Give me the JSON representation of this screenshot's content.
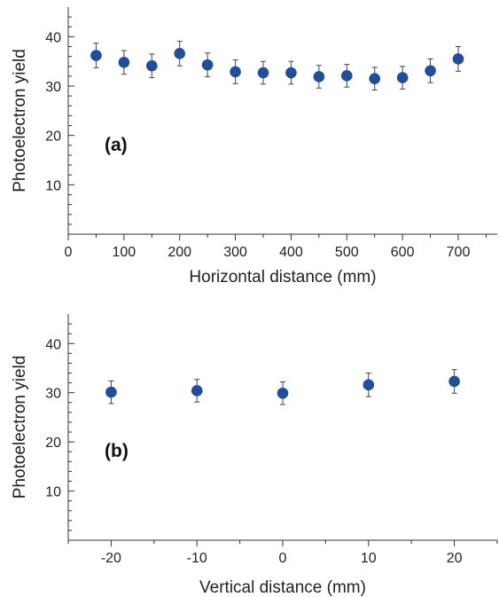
{
  "chart_data": [
    {
      "type": "scatter",
      "panel_label": "(a)",
      "xlabel": "Horizontal distance  (mm)",
      "ylabel": "Photoelectron  yield",
      "xlim": [
        0,
        770
      ],
      "ylim": [
        0,
        46
      ],
      "xticks": [
        0,
        100,
        200,
        300,
        400,
        500,
        600,
        700
      ],
      "yticks": [
        10,
        20,
        30,
        40
      ],
      "marker_color": "#1f4e9c",
      "points": [
        {
          "x": 50,
          "y": 36.2,
          "err": 2.5
        },
        {
          "x": 100,
          "y": 34.8,
          "err": 2.4
        },
        {
          "x": 150,
          "y": 34.1,
          "err": 2.4
        },
        {
          "x": 200,
          "y": 36.6,
          "err": 2.5
        },
        {
          "x": 250,
          "y": 34.3,
          "err": 2.4
        },
        {
          "x": 300,
          "y": 32.9,
          "err": 2.4
        },
        {
          "x": 350,
          "y": 32.7,
          "err": 2.3
        },
        {
          "x": 400,
          "y": 32.7,
          "err": 2.3
        },
        {
          "x": 450,
          "y": 31.9,
          "err": 2.3
        },
        {
          "x": 500,
          "y": 32.1,
          "err": 2.3
        },
        {
          "x": 550,
          "y": 31.5,
          "err": 2.3
        },
        {
          "x": 600,
          "y": 31.7,
          "err": 2.3
        },
        {
          "x": 650,
          "y": 33.1,
          "err": 2.4
        },
        {
          "x": 700,
          "y": 35.5,
          "err": 2.5
        }
      ]
    },
    {
      "type": "scatter",
      "panel_label": "(b)",
      "xlabel": "Vertical distance  (mm)",
      "ylabel": "Photoelectron  yield",
      "xlim": [
        -25,
        25
      ],
      "ylim": [
        0,
        46
      ],
      "xticks": [
        -20,
        -10,
        0,
        10,
        20
      ],
      "yticks": [
        10,
        20,
        30,
        40
      ],
      "marker_color": "#1f4e9c",
      "points": [
        {
          "x": -20,
          "y": 30.1,
          "err": 2.3
        },
        {
          "x": -10,
          "y": 30.4,
          "err": 2.3
        },
        {
          "x": 0,
          "y": 29.9,
          "err": 2.3
        },
        {
          "x": 10,
          "y": 31.6,
          "err": 2.4
        },
        {
          "x": 20,
          "y": 32.3,
          "err": 2.4
        }
      ]
    }
  ]
}
